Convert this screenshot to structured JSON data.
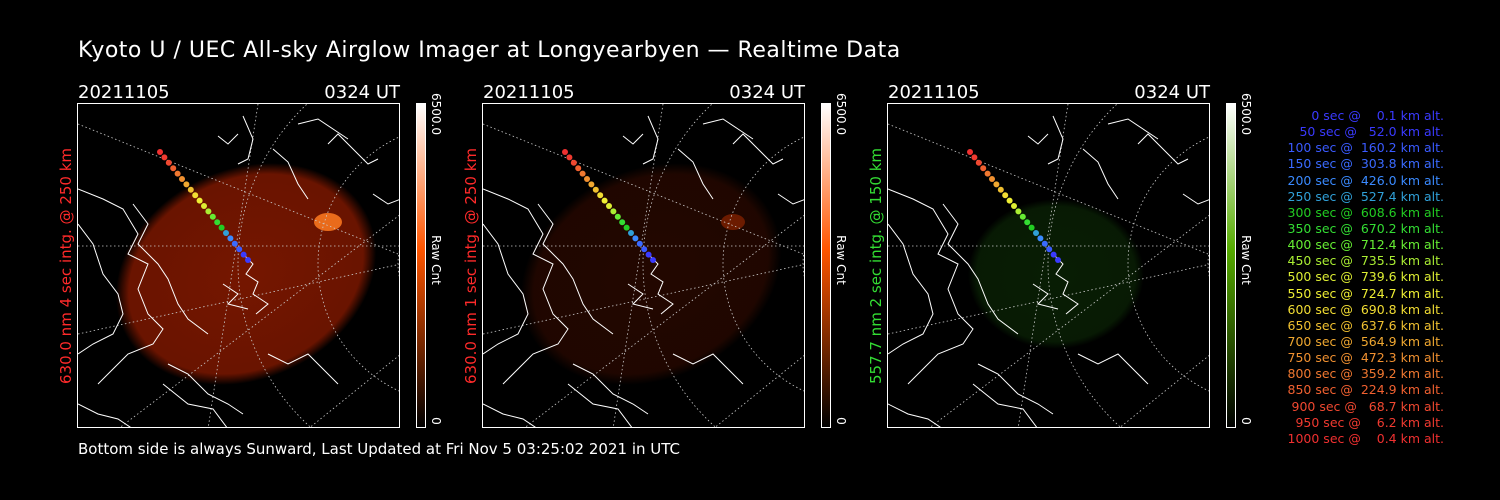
{
  "title": "Kyoto U / UEC All-sky Airglow Imager at Longyearbyen — Realtime Data",
  "footer": "Bottom side is always Sunward, Last Updated at Fri Nov  5 03:25:02 2021 in UTC",
  "panels": [
    {
      "date": "20211105",
      "time": "0324 UT",
      "side_label": "630.0 nm 4 sec intg. @ 250 km",
      "side_label_color": "#ff2a2a",
      "colorbar_max": "6500.0",
      "colorbar_min": "0",
      "colorbar_unit": "Raw Cnt",
      "colorbar_color": "#ff5500",
      "glow_color": "#8a1a00",
      "glow_intensity": 0.85
    },
    {
      "date": "20211105",
      "time": "0324 UT",
      "side_label": "630.0 nm 1 sec intg. @ 250 km",
      "side_label_color": "#ff2a2a",
      "colorbar_max": "6500.0",
      "colorbar_min": "0",
      "colorbar_unit": "Raw Cnt",
      "colorbar_color": "#ff5500",
      "glow_color": "#3a0c00",
      "glow_intensity": 0.6
    },
    {
      "date": "20211105",
      "time": "0324 UT",
      "side_label": "557.7 nm 2 sec intg. @ 150 km",
      "side_label_color": "#33dd33",
      "colorbar_max": "6500.0",
      "colorbar_min": "0",
      "colorbar_unit": "Raw Cnt",
      "colorbar_color": "#55aa00",
      "glow_color": "#0c2a06",
      "glow_intensity": 0.7
    }
  ],
  "legend": [
    {
      "text": "   0 sec @    0.1 km alt.",
      "color": "#3a3aff"
    },
    {
      "text": "  50 sec @   52.0 km alt.",
      "color": "#3a3aff"
    },
    {
      "text": " 100 sec @  160.2 km alt.",
      "color": "#3a5aff"
    },
    {
      "text": " 150 sec @  303.8 km alt.",
      "color": "#3a6aff"
    },
    {
      "text": " 200 sec @  426.0 km alt.",
      "color": "#3a8aff"
    },
    {
      "text": " 250 sec @  527.4 km alt.",
      "color": "#30a0d8"
    },
    {
      "text": " 300 sec @  608.6 km alt.",
      "color": "#22cc22"
    },
    {
      "text": " 350 sec @  670.2 km alt.",
      "color": "#33dd33"
    },
    {
      "text": " 400 sec @  712.4 km alt.",
      "color": "#66ee33"
    },
    {
      "text": " 450 sec @  735.5 km alt.",
      "color": "#aaee33"
    },
    {
      "text": " 500 sec @  739.6 km alt.",
      "color": "#ddee33"
    },
    {
      "text": " 550 sec @  724.7 km alt.",
      "color": "#eeee33"
    },
    {
      "text": " 600 sec @  690.8 km alt.",
      "color": "#f2dd33"
    },
    {
      "text": " 650 sec @  637.6 km alt.",
      "color": "#f0c030"
    },
    {
      "text": " 700 sec @  564.9 km alt.",
      "color": "#f0a830"
    },
    {
      "text": " 750 sec @  472.3 km alt.",
      "color": "#f09030"
    },
    {
      "text": " 800 sec @  359.2 km alt.",
      "color": "#f07830"
    },
    {
      "text": " 850 sec @  224.9 km alt.",
      "color": "#f06030"
    },
    {
      "text": " 900 sec @   68.7 km alt.",
      "color": "#f04830"
    },
    {
      "text": " 950 sec @    6.2 km alt.",
      "color": "#f03a30"
    },
    {
      "text": "1000 sec @    0.4 km alt.",
      "color": "#f03030"
    }
  ]
}
